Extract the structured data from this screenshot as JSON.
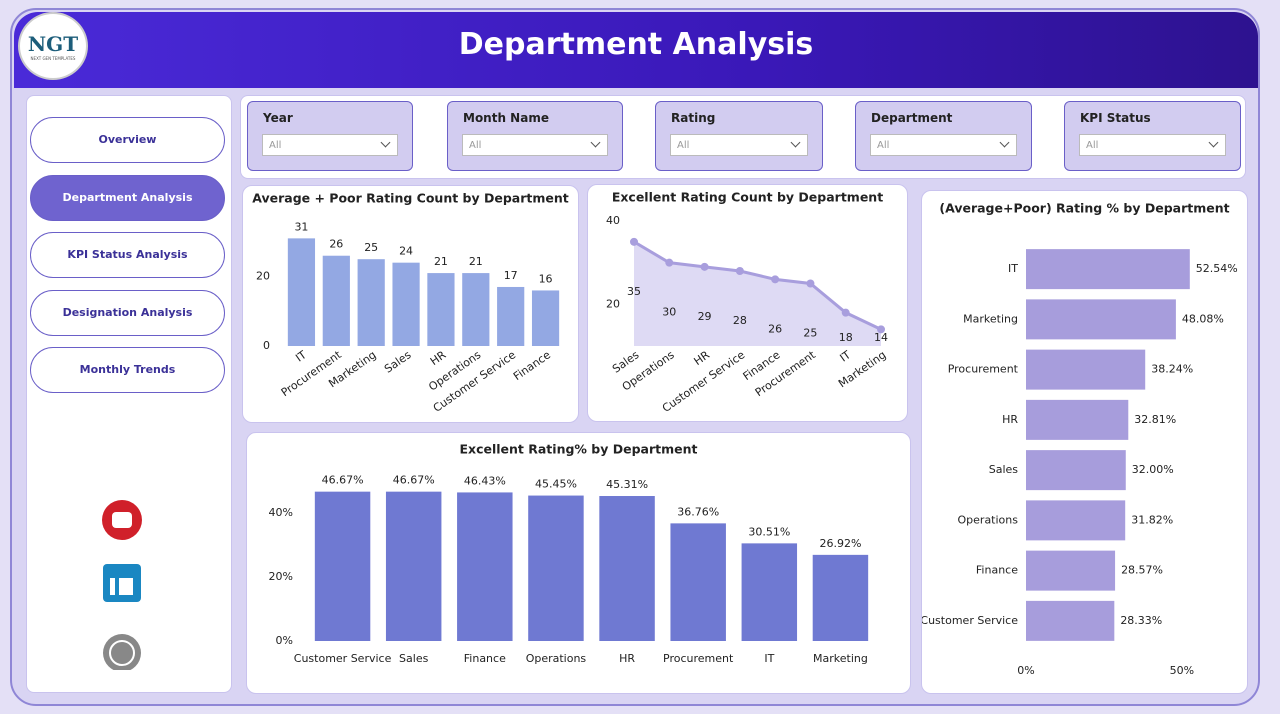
{
  "header": {
    "title": "Department Analysis",
    "logo": "NGT",
    "logo_subtitle": "NEXT GEN TEMPLATES"
  },
  "nav": {
    "items": [
      "Overview",
      "Department Analysis",
      "KPI Status Analysis",
      "Designation Analysis",
      "Monthly Trends"
    ],
    "active_index": 1
  },
  "filters": [
    {
      "label": "Year",
      "value": "All"
    },
    {
      "label": "Month Name",
      "value": "All"
    },
    {
      "label": "Rating",
      "value": "All"
    },
    {
      "label": "Department",
      "value": "All"
    },
    {
      "label": "KPI Status",
      "value": "All"
    }
  ],
  "chart_data": [
    {
      "type": "bar",
      "title": "Average + Poor Rating Count by Department",
      "categories": [
        "IT",
        "Procurement",
        "Marketing",
        "Sales",
        "HR",
        "Operations",
        "Customer Service",
        "Finance"
      ],
      "values": [
        31,
        26,
        25,
        24,
        21,
        21,
        17,
        16
      ],
      "color": "#93a8e3",
      "ylim": [
        0,
        36
      ],
      "yticks": [
        0,
        20
      ]
    },
    {
      "type": "area",
      "title": "Excellent Rating Count by Department",
      "categories": [
        "Sales",
        "Operations",
        "HR",
        "Customer Service",
        "Finance",
        "Procurement",
        "IT",
        "Marketing"
      ],
      "values": [
        35,
        30,
        29,
        28,
        26,
        25,
        18,
        14
      ],
      "color": "#a89edd",
      "area_color": "#dedaf4",
      "ylim": [
        10,
        40
      ],
      "yticks": [
        20,
        40
      ]
    },
    {
      "type": "bar",
      "orientation": "horizontal",
      "title": "(Average+Poor) Rating % by Department",
      "categories": [
        "IT",
        "Marketing",
        "Procurement",
        "HR",
        "Sales",
        "Operations",
        "Finance",
        "Customer Service"
      ],
      "values": [
        52.54,
        48.08,
        38.24,
        32.81,
        32.0,
        31.82,
        28.57,
        28.33
      ],
      "value_labels": [
        "52.54%",
        "48.08%",
        "38.24%",
        "32.81%",
        "32.00%",
        "31.82%",
        "28.57%",
        "28.33%"
      ],
      "color": "#a79ddc",
      "xlim": [
        0,
        68
      ],
      "xticks": [
        {
          "value": 0,
          "label": "0%"
        },
        {
          "value": 50,
          "label": "50%"
        }
      ]
    },
    {
      "type": "bar",
      "title": "Excellent Rating% by Department",
      "categories": [
        "Customer Service",
        "Sales",
        "Finance",
        "Operations",
        "HR",
        "Procurement",
        "IT",
        "Marketing"
      ],
      "values": [
        46.67,
        46.67,
        46.43,
        45.45,
        45.31,
        36.76,
        30.51,
        26.92
      ],
      "value_labels": [
        "46.67%",
        "46.67%",
        "46.43%",
        "45.45%",
        "45.31%",
        "36.76%",
        "30.51%",
        "26.92%"
      ],
      "color": "#6f79d2",
      "ylim": [
        0,
        50
      ],
      "yticks": [
        {
          "value": 0,
          "label": "0%"
        },
        {
          "value": 20,
          "label": "20%"
        },
        {
          "value": 40,
          "label": "40%"
        }
      ]
    }
  ]
}
